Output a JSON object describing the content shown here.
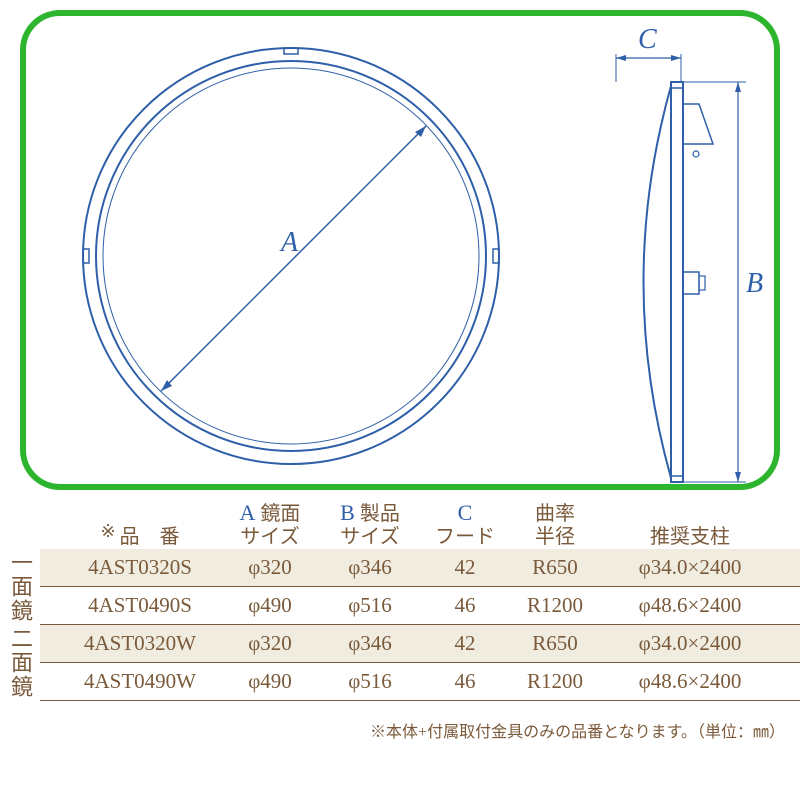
{
  "diagram": {
    "labels": {
      "A": "A",
      "B": "B",
      "C": "C"
    },
    "stroke": "#2e5fa8",
    "frame_border": "#2eb52e"
  },
  "table": {
    "headers": {
      "part_no_prefix": "※",
      "part_no": "品　番",
      "A_em": "A",
      "A_txt": "鏡面\nサイズ",
      "B_em": "B",
      "B_txt": "製品\nサイズ",
      "C_em": "C",
      "C_txt": "フード",
      "radius": "曲率\n半径",
      "pillar": "推奨支柱"
    },
    "groups": [
      {
        "label": "一面鏡",
        "rows": [
          {
            "pn": "4AST0320S",
            "a": "φ320",
            "b": "φ346",
            "c": "42",
            "r": "R650",
            "p": "φ34.0×2400",
            "band": "A"
          },
          {
            "pn": "4AST0490S",
            "a": "φ490",
            "b": "φ516",
            "c": "46",
            "r": "R1200",
            "p": "φ48.6×2400",
            "band": "B"
          }
        ]
      },
      {
        "label": "二面鏡",
        "rows": [
          {
            "pn": "4AST0320W",
            "a": "φ320",
            "b": "φ346",
            "c": "42",
            "r": "R650",
            "p": "φ34.0×2400",
            "band": "A"
          },
          {
            "pn": "4AST0490W",
            "a": "φ490",
            "b": "φ516",
            "c": "46",
            "r": "R1200",
            "p": "φ48.6×2400",
            "band": "B"
          }
        ]
      }
    ],
    "footnote": "※本体+付属取付金具のみの品番となります。（単位：㎜）"
  }
}
